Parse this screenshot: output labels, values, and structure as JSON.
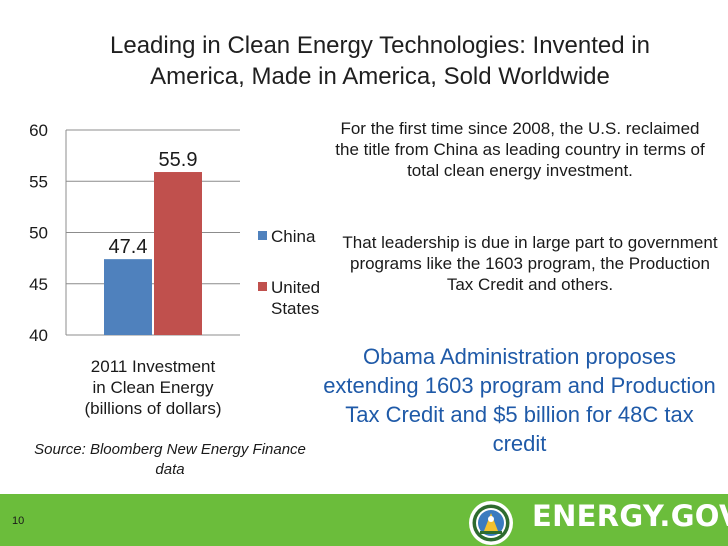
{
  "slide": {
    "title": "Leading in Clean Energy Technologies: Invented in America, Made in America, Sold Worldwide",
    "paragraph_1": "For the first time since 2008, the U.S. reclaimed the title from China as leading country in terms of total clean energy investment.",
    "paragraph_2": "That leadership is due in large part to government programs like the 1603 program, the Production Tax Credit and others.",
    "highlight": "Obama Administration proposes extending 1603 program and Production Tax Credit and $5 billion for 48C tax credit",
    "source": "Source: Bloomberg New Energy Finance data",
    "page_number": "10",
    "brand": "ENERGY.GOV"
  },
  "colors": {
    "china": "#4f81bd",
    "united_states": "#c0504d",
    "footer": "#6bbd3b",
    "highlight_text": "#1f5aa8"
  },
  "icons": {
    "seal": "doe-seal-icon"
  },
  "chart_data": {
    "type": "bar",
    "categories": [
      "2011 Investment in Clean Energy (billions of dollars)"
    ],
    "category_lines": [
      "2011 Investment",
      "in Clean Energy",
      "(billions of dollars)"
    ],
    "series": [
      {
        "name": "China",
        "values": [
          47.4
        ],
        "labels": [
          "47.4"
        ],
        "color": "#4f81bd"
      },
      {
        "name": "United States",
        "name_lines": [
          "United",
          "States"
        ],
        "values": [
          55.9
        ],
        "labels": [
          "55.9"
        ],
        "color": "#c0504d"
      }
    ],
    "ylim": [
      40,
      60
    ],
    "yticks": [
      40,
      45,
      50,
      55,
      60
    ],
    "grid": true,
    "legend": "right"
  }
}
